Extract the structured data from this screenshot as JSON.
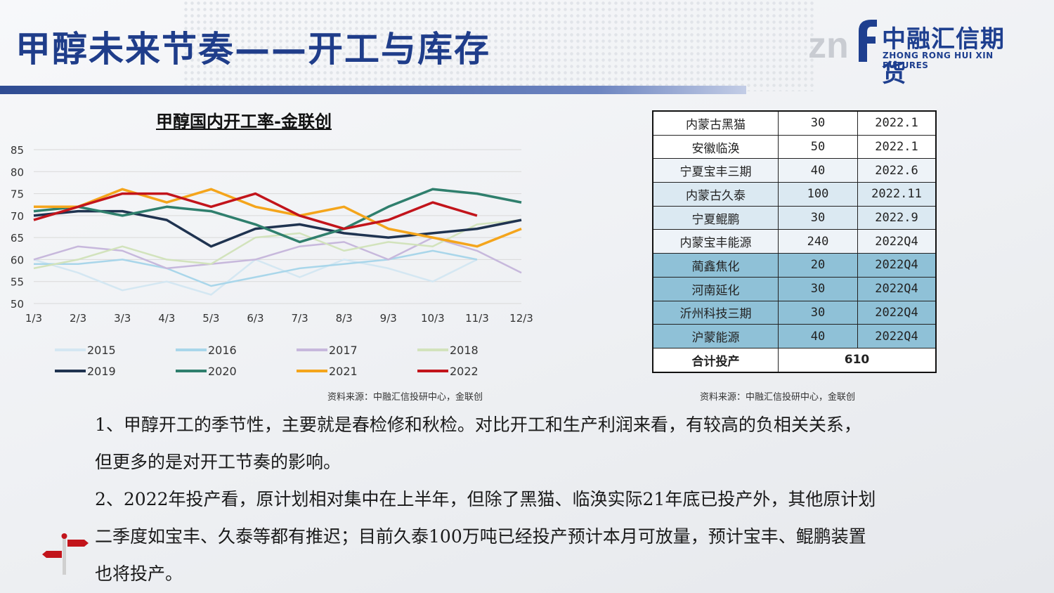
{
  "header": {
    "title": "甲醇未来节奏——开工与库存",
    "logo_cn": "中融汇信期货",
    "logo_en": "ZHONG RONG HUI XIN FUTURES"
  },
  "chart_title": "甲醇国内开工率-金联创",
  "chart_data": {
    "type": "line",
    "title": "甲醇国内开工率-金联创",
    "categories": [
      "1/3",
      "2/3",
      "3/3",
      "4/3",
      "5/3",
      "6/3",
      "7/3",
      "8/3",
      "9/3",
      "10/3",
      "11/3",
      "12/3"
    ],
    "ylim": [
      50,
      85
    ],
    "yticks": [
      50,
      55,
      60,
      65,
      70,
      75,
      80,
      85
    ],
    "legend_position": "bottom",
    "grid": true,
    "series": [
      {
        "name": "2015",
        "color": "#d4e7f2",
        "values": [
          60,
          57,
          53,
          55,
          52,
          60,
          56,
          60,
          58,
          55,
          60,
          null
        ]
      },
      {
        "name": "2016",
        "color": "#a9d6ea",
        "values": [
          59,
          59,
          60,
          58,
          54,
          56,
          58,
          59,
          60,
          62,
          60,
          null
        ]
      },
      {
        "name": "2017",
        "color": "#c7b8dc",
        "values": [
          60,
          63,
          62,
          58,
          59,
          60,
          63,
          64,
          60,
          65,
          62,
          57
        ]
      },
      {
        "name": "2018",
        "color": "#d2e3bc",
        "values": [
          58,
          60,
          63,
          60,
          59,
          65,
          66,
          62,
          64,
          63,
          68,
          69
        ]
      },
      {
        "name": "2019",
        "color": "#1f3350",
        "values": [
          70,
          71,
          71,
          69,
          63,
          67,
          68,
          66,
          65,
          66,
          67,
          69
        ]
      },
      {
        "name": "2020",
        "color": "#2f7f6d",
        "values": [
          71,
          72,
          70,
          72,
          71,
          68,
          64,
          67,
          72,
          76,
          75,
          73
        ]
      },
      {
        "name": "2021",
        "color": "#f4a51c",
        "values": [
          72,
          72,
          76,
          73,
          76,
          72,
          70,
          72,
          67,
          65,
          63,
          67
        ]
      },
      {
        "name": "2022",
        "color": "#c2141b",
        "values": [
          69,
          72,
          75,
          75,
          72,
          75,
          70,
          67,
          69,
          73,
          70,
          null
        ]
      }
    ]
  },
  "chart_source": "资料来源：中融汇信投研中心，金联创",
  "table": {
    "rows": [
      {
        "name": "内蒙古黑猫",
        "capacity": "30",
        "date": "2022.1"
      },
      {
        "name": "安徽临涣",
        "capacity": "50",
        "date": "2022.1"
      },
      {
        "name": "宁夏宝丰三期",
        "capacity": "40",
        "date": "2022.6"
      },
      {
        "name": "内蒙古久泰",
        "capacity": "100",
        "date": "2022.11"
      },
      {
        "name": "宁夏鲲鹏",
        "capacity": "30",
        "date": "2022.9"
      },
      {
        "name": "内蒙宝丰能源",
        "capacity": "240",
        "date": "2022Q4"
      },
      {
        "name": "蔺鑫焦化",
        "capacity": "20",
        "date": "2022Q4"
      },
      {
        "name": "河南延化",
        "capacity": "30",
        "date": "2022Q4"
      },
      {
        "name": "沂州科技三期",
        "capacity": "30",
        "date": "2022Q4"
      },
      {
        "name": "沪蒙能源",
        "capacity": "40",
        "date": "2022Q4"
      }
    ],
    "total_label": "合计投产",
    "total_value": "610"
  },
  "table_source": "资料来源：中融汇信投研中心，金联创",
  "paragraphs": {
    "p1_line1": "1、甲醇开工的季节性，主要就是春检修和秋检。对比开工和生产利润来看，有较高的负相关关系，",
    "p1_line2": "但更多的是对开工节奏的影响。",
    "p2_line1": "2、2022年投产看，原计划相对集中在上半年，但除了黑猫、临涣实际21年底已投产外，其他原计划",
    "p2_line2": "二季度如宝丰、久泰等都有推迟；目前久泰100万吨已经投产预计本月可放量，预计宝丰、鲲鹏装置",
    "p2_line3": "也将投产。"
  }
}
